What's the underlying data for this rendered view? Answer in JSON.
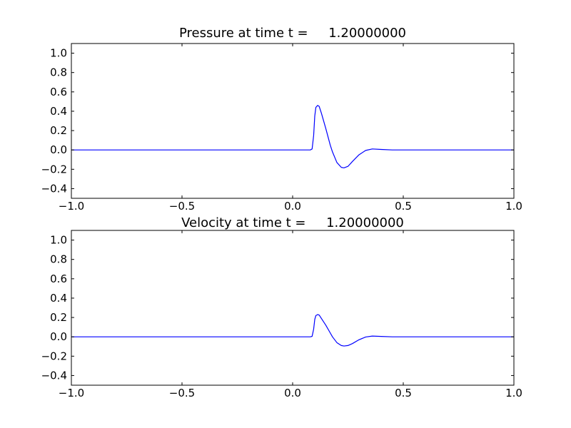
{
  "chart_data": [
    {
      "type": "line",
      "title": "Pressure at time t =     1.20000000",
      "xlabel": "",
      "ylabel": "",
      "xlim": [
        -1.0,
        1.0
      ],
      "ylim": [
        -0.5,
        1.1
      ],
      "xticks": [
        "−1.0",
        "−0.5",
        "0.0",
        "0.5",
        "1.0"
      ],
      "xtick_values": [
        -1.0,
        -0.5,
        0.0,
        0.5,
        1.0
      ],
      "yticks": [
        "−0.4",
        "−0.2",
        "0.0",
        "0.2",
        "0.4",
        "0.6",
        "0.8",
        "1.0"
      ],
      "ytick_values": [
        -0.4,
        -0.2,
        0.0,
        0.2,
        0.4,
        0.6,
        0.8,
        1.0
      ],
      "grid": false,
      "series": [
        {
          "name": "pressure",
          "color": "#0000ff",
          "x": [
            -1,
            0.08,
            0.088,
            0.095,
            0.1,
            0.105,
            0.113,
            0.12,
            0.13,
            0.15,
            0.17,
            0.18,
            0.2,
            0.22,
            0.232,
            0.25,
            0.27,
            0.3,
            0.33,
            0.36,
            0.4,
            0.45,
            1
          ],
          "y": [
            0,
            0,
            0.01,
            0.15,
            0.35,
            0.44,
            0.46,
            0.45,
            0.38,
            0.22,
            0.05,
            -0.02,
            -0.13,
            -0.18,
            -0.185,
            -0.17,
            -0.12,
            -0.05,
            -0.005,
            0.01,
            0.005,
            0,
            0
          ]
        }
      ]
    },
    {
      "type": "line",
      "title": "Velocity at time t =     1.20000000",
      "xlabel": "",
      "ylabel": "",
      "xlim": [
        -1.0,
        1.0
      ],
      "ylim": [
        -0.5,
        1.1
      ],
      "xticks": [
        "−1.0",
        "−0.5",
        "0.0",
        "0.5",
        "1.0"
      ],
      "xtick_values": [
        -1.0,
        -0.5,
        0.0,
        0.5,
        1.0
      ],
      "yticks": [
        "−0.4",
        "−0.2",
        "0.0",
        "0.2",
        "0.4",
        "0.6",
        "0.8",
        "1.0"
      ],
      "ytick_values": [
        -0.4,
        -0.2,
        0.0,
        0.2,
        0.4,
        0.6,
        0.8,
        1.0
      ],
      "grid": false,
      "series": [
        {
          "name": "velocity",
          "color": "#0000ff",
          "x": [
            -1,
            0.08,
            0.088,
            0.095,
            0.1,
            0.105,
            0.113,
            0.12,
            0.13,
            0.15,
            0.17,
            0.18,
            0.2,
            0.22,
            0.232,
            0.25,
            0.27,
            0.3,
            0.33,
            0.36,
            0.4,
            0.45,
            1
          ],
          "y": [
            0,
            0,
            0.005,
            0.08,
            0.18,
            0.22,
            0.23,
            0.225,
            0.19,
            0.12,
            0.04,
            0.0,
            -0.06,
            -0.09,
            -0.095,
            -0.09,
            -0.07,
            -0.03,
            -0.002,
            0.008,
            0.004,
            0,
            0
          ]
        }
      ]
    }
  ]
}
